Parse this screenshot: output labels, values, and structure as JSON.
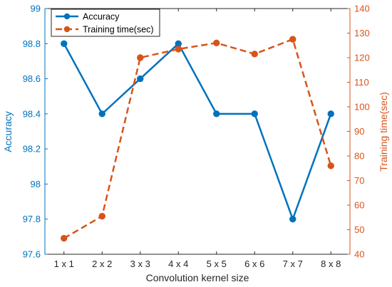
{
  "chart_data": {
    "type": "line",
    "categories": [
      "1 x 1",
      "2 x 2",
      "3 x 3",
      "4 x 4",
      "5 x 5",
      "6 x 6",
      "7 x 7",
      "8 x 8"
    ],
    "xlabel": "Convolution kernel size",
    "ylabel_left": "Accuracy",
    "ylabel_right": "Training time(sec)",
    "ylim_left": [
      97.6,
      99
    ],
    "yticks_left": [
      "97.6",
      "97.8",
      "98",
      "98.2",
      "98.4",
      "98.6",
      "98.8",
      "99"
    ],
    "ylim_right": [
      40,
      140
    ],
    "yticks_right": [
      "40",
      "50",
      "60",
      "70",
      "80",
      "90",
      "100",
      "110",
      "120",
      "130",
      "140"
    ],
    "legend_position": "top-left",
    "grid": false,
    "series": [
      {
        "name": "Accuracy",
        "axis": "left",
        "style": "solid line with circle markers",
        "color": "#0072BD",
        "values": [
          98.8,
          98.4,
          98.6,
          98.8,
          98.4,
          98.4,
          97.8,
          98.4
        ]
      },
      {
        "name": "Training time(sec)",
        "axis": "right",
        "style": "dashed line with circle markers",
        "color": "#D95319",
        "values": [
          46.5,
          55.5,
          120,
          123.5,
          126,
          121.5,
          127.5,
          76
        ]
      }
    ]
  }
}
